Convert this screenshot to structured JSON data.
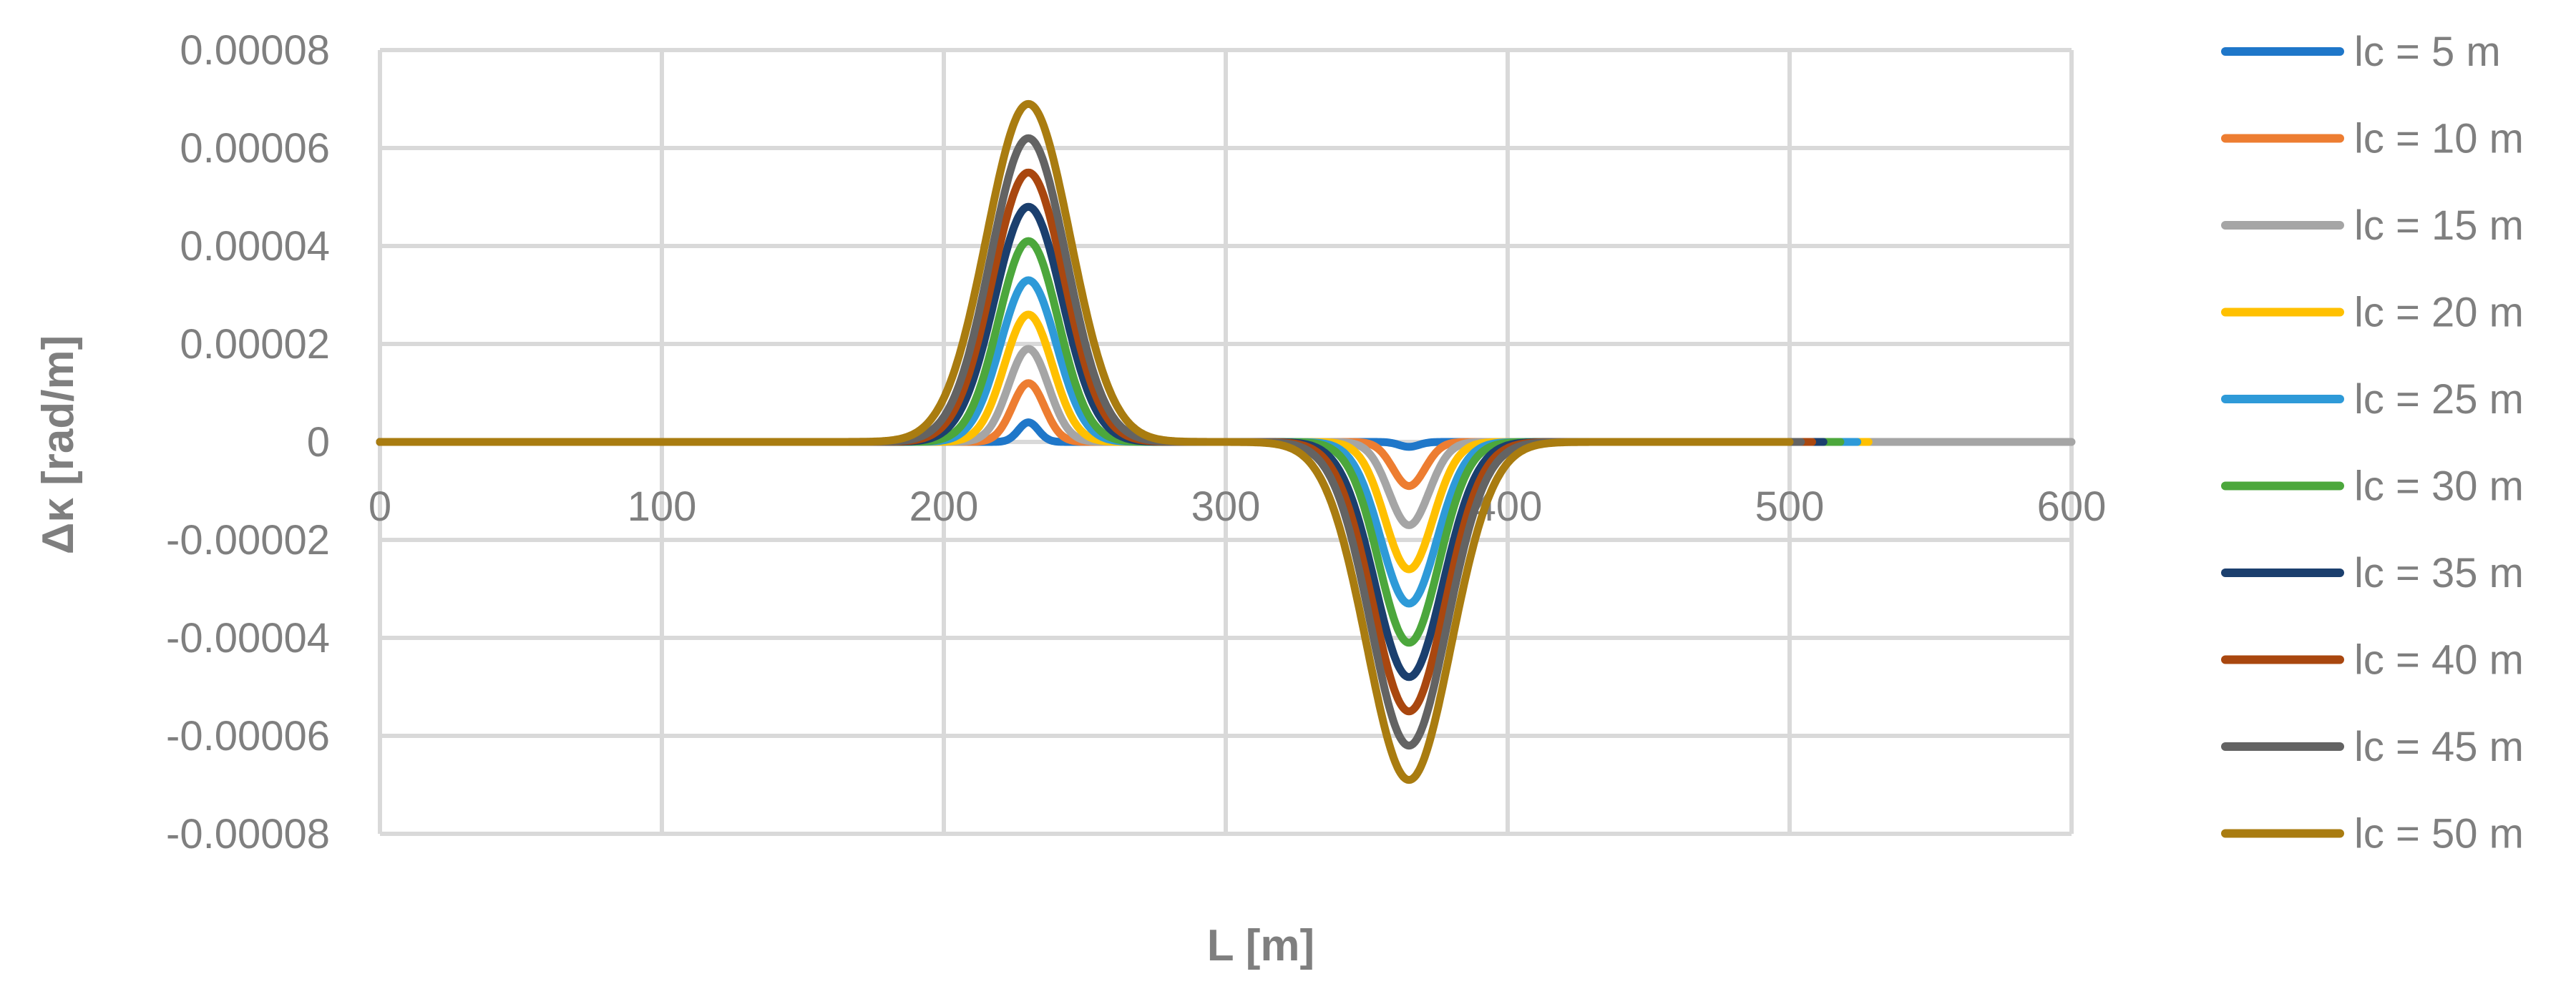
{
  "chart_data": {
    "type": "line",
    "title": "",
    "xlabel": "L [m]",
    "ylabel": "Δκ [rad/m]",
    "xlim": [
      0,
      600
    ],
    "ylim": [
      -8e-05,
      8e-05
    ],
    "x_ticks": [
      0,
      100,
      200,
      300,
      400,
      500,
      600
    ],
    "x_tick_labels": [
      "0",
      "100",
      "200",
      "300",
      "400",
      "500",
      "600"
    ],
    "y_ticks": [
      8e-05,
      6e-05,
      4e-05,
      2e-05,
      0,
      -2e-05,
      -4e-05,
      -6e-05,
      -8e-05
    ],
    "y_tick_labels": [
      "0.00008",
      "0.00006",
      "0.00004",
      "0.00002",
      "0",
      "-0.00002",
      "-0.00004",
      "-0.00006",
      "-0.00008"
    ],
    "grid": true,
    "legend_position": "right",
    "series": [
      {
        "name": "lc = 5 m",
        "color": "#1f77c9",
        "x_end": 538,
        "peak_x": 230,
        "peak_y": 4e-06,
        "trough_x": 365,
        "trough_y": -1e-06,
        "half_width": 5
      },
      {
        "name": "lc = 10 m",
        "color": "#ed7d31",
        "x_end": 540,
        "peak_x": 230,
        "peak_y": 1.2e-05,
        "trough_x": 365,
        "trough_y": -9e-06,
        "half_width": 8
      },
      {
        "name": "lc = 15 m",
        "color": "#a5a5a5",
        "x_end": 600,
        "peak_x": 230,
        "peak_y": 1.9e-05,
        "trough_x": 365,
        "trough_y": -1.7e-05,
        "half_width": 10
      },
      {
        "name": "lc = 20 m",
        "color": "#ffc000",
        "x_end": 528,
        "peak_x": 230,
        "peak_y": 2.6e-05,
        "trough_x": 365,
        "trough_y": -2.6e-05,
        "half_width": 12
      },
      {
        "name": "lc = 25 m",
        "color": "#2e9ad8",
        "x_end": 524,
        "peak_x": 230,
        "peak_y": 3.3e-05,
        "trough_x": 365,
        "trough_y": -3.3e-05,
        "half_width": 14
      },
      {
        "name": "lc = 30 m",
        "color": "#4ca73c",
        "x_end": 518,
        "peak_x": 230,
        "peak_y": 4.1e-05,
        "trough_x": 365,
        "trough_y": -4.1e-05,
        "half_width": 15
      },
      {
        "name": "lc = 35 m",
        "color": "#1b3f6e",
        "x_end": 512,
        "peak_x": 230,
        "peak_y": 4.8e-05,
        "trough_x": 365,
        "trough_y": -4.8e-05,
        "half_width": 17
      },
      {
        "name": "lc = 40 m",
        "color": "#a9470f",
        "x_end": 508,
        "peak_x": 230,
        "peak_y": 5.5e-05,
        "trough_x": 365,
        "trough_y": -5.5e-05,
        "half_width": 18
      },
      {
        "name": "lc = 45 m",
        "color": "#636363",
        "x_end": 504,
        "peak_x": 230,
        "peak_y": 6.2e-05,
        "trough_x": 365,
        "trough_y": -6.2e-05,
        "half_width": 19
      },
      {
        "name": "lc = 50 m",
        "color": "#a97c10",
        "x_end": 500,
        "peak_x": 230,
        "peak_y": 6.9e-05,
        "trough_x": 365,
        "trough_y": -6.9e-05,
        "half_width": 21
      }
    ]
  }
}
